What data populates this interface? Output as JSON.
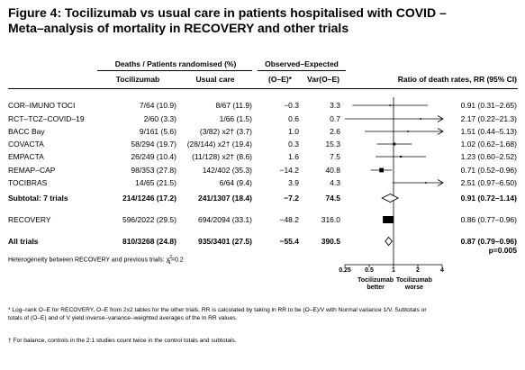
{
  "title": {
    "line1": "Figure 4: Tocilizumab vs usual care in patients hospitalised with COVID –",
    "line2": "Meta–analysis of mortality in RECOVERY and other trials"
  },
  "headers": {
    "group_deaths": "Deaths / Patients randomised (%)",
    "group_oe": "Observed–Expected",
    "col_toci": "Tocilizumab",
    "col_usual": "Usual care",
    "col_oe": "(O–E)*",
    "col_var": "Var(O–E)",
    "col_ratio": "Ratio of death rates, RR (95% CI)"
  },
  "rows": [
    {
      "name": "COR–IMUNO TOCI",
      "toci": "7/64 (10.9)",
      "usual": "8/67 (11.9)",
      "oe": "−0.3",
      "var": "3.3",
      "rr_text": "0.91 (0.31–2.65)",
      "bold": false
    },
    {
      "name": "RCT–TCZ–COVID–19",
      "toci": "2/60 (3.3)",
      "usual": "1/66 (1.5)",
      "oe": "0.6",
      "var": "0.7",
      "rr_text": "2.17 (0.22–21.3)",
      "bold": false
    },
    {
      "name": "BACC Bay",
      "toci": "9/161 (5.6)",
      "usual": "(3/82) x2† (3.7)",
      "oe": "1.0",
      "var": "2.6",
      "rr_text": "1.51 (0.44–5.13)",
      "bold": false
    },
    {
      "name": "COVACTA",
      "toci": "58/294 (19.7)",
      "usual": "(28/144) x2† (19.4)",
      "oe": "0.3",
      "var": "15.3",
      "rr_text": "1.02 (0.62–1.68)",
      "bold": false
    },
    {
      "name": "EMPACTA",
      "toci": "26/249 (10.4)",
      "usual": "(11/128) x2† (8.6)",
      "oe": "1.6",
      "var": "7.5",
      "rr_text": "1.23 (0.60–2.52)",
      "bold": false
    },
    {
      "name": "REMAP–CAP",
      "toci": "98/353 (27.8)",
      "usual": "142/402 (35.3)",
      "oe": "−14.2",
      "var": "40.8",
      "rr_text": "0.71 (0.52–0.96)",
      "bold": false
    },
    {
      "name": "TOCIBRAS",
      "toci": "14/65 (21.5)",
      "usual": "6/64 (9.4)",
      "oe": "3.9",
      "var": "4.3",
      "rr_text": "2.51 (0.97–6.50)",
      "bold": false
    },
    {
      "name": "Subtotal: 7 trials",
      "toci": "214/1246 (17.2)",
      "usual": "241/1307 (18.4)",
      "oe": "−7.2",
      "var": "74.5",
      "rr_text": "0.91 (0.72–1.14)",
      "bold": true
    },
    {
      "name": "RECOVERY",
      "toci": "596/2022 (29.5)",
      "usual": "694/2094 (33.1)",
      "oe": "−48.2",
      "var": "316.0",
      "rr_text": "0.86 (0.77–0.96)",
      "bold": false
    },
    {
      "name": "All trials",
      "toci": "810/3268 (24.8)",
      "usual": "935/3401 (27.5)",
      "oe": "−55.4",
      "var": "390.5",
      "rr_text": "0.87 (0.79–0.96)",
      "rr_text2": "p=0.005",
      "bold": true
    }
  ],
  "heterogeneity": "Heterogeneity between RECOVERY and previous trials: χ",
  "heterogeneity_sup": "2",
  "heterogeneity_sub": "1",
  "heterogeneity_val": "=0.2",
  "axis": {
    "ticks": [
      "0.25",
      "0.5",
      "1",
      "2",
      "4"
    ],
    "left_label_1": "Tocilizumab",
    "left_label_2": "better",
    "right_label_1": "Tocilizumab",
    "right_label_2": "worse"
  },
  "footnotes": {
    "f1_line1": "* Log–rank O–E for RECOVERY, O–E from 2x2 tables for the other trials. RR is calculated by taking ln RR to be (O–E)/V with Normal variance 1/V. Subtotals or",
    "f1_line2": "totals of (O–E) and of V yield inverse–variance–weighted averages of the ln RR values.",
    "f2": "† For balance, controls in the 2:1 studies count twice in the control totals and subtotals."
  },
  "chart_data": {
    "type": "forest",
    "scale": "log",
    "xlim": [
      0.25,
      4
    ],
    "reference": 1,
    "studies": [
      {
        "name": "COR–IMUNO TOCI",
        "rr": 0.91,
        "lo": 0.31,
        "hi": 2.65,
        "var": 3.3,
        "kind": "trial"
      },
      {
        "name": "RCT–TCZ–COVID–19",
        "rr": 2.17,
        "lo": 0.22,
        "hi": 21.3,
        "var": 0.7,
        "kind": "trial"
      },
      {
        "name": "BACC Bay",
        "rr": 1.51,
        "lo": 0.44,
        "hi": 5.13,
        "var": 2.6,
        "kind": "trial"
      },
      {
        "name": "COVACTA",
        "rr": 1.02,
        "lo": 0.62,
        "hi": 1.68,
        "var": 15.3,
        "kind": "trial"
      },
      {
        "name": "EMPACTA",
        "rr": 1.23,
        "lo": 0.6,
        "hi": 2.52,
        "var": 7.5,
        "kind": "trial"
      },
      {
        "name": "REMAP–CAP",
        "rr": 0.71,
        "lo": 0.52,
        "hi": 0.96,
        "var": 40.8,
        "kind": "trial"
      },
      {
        "name": "TOCIBRAS",
        "rr": 2.51,
        "lo": 0.97,
        "hi": 6.5,
        "var": 4.3,
        "kind": "trial"
      },
      {
        "name": "Subtotal: 7 trials",
        "rr": 0.91,
        "lo": 0.72,
        "hi": 1.14,
        "kind": "diamond"
      },
      {
        "name": "RECOVERY",
        "rr": 0.86,
        "lo": 0.77,
        "hi": 0.96,
        "var": 316.0,
        "kind": "trial"
      },
      {
        "name": "All trials",
        "rr": 0.87,
        "lo": 0.79,
        "hi": 0.96,
        "kind": "diamond"
      }
    ]
  }
}
